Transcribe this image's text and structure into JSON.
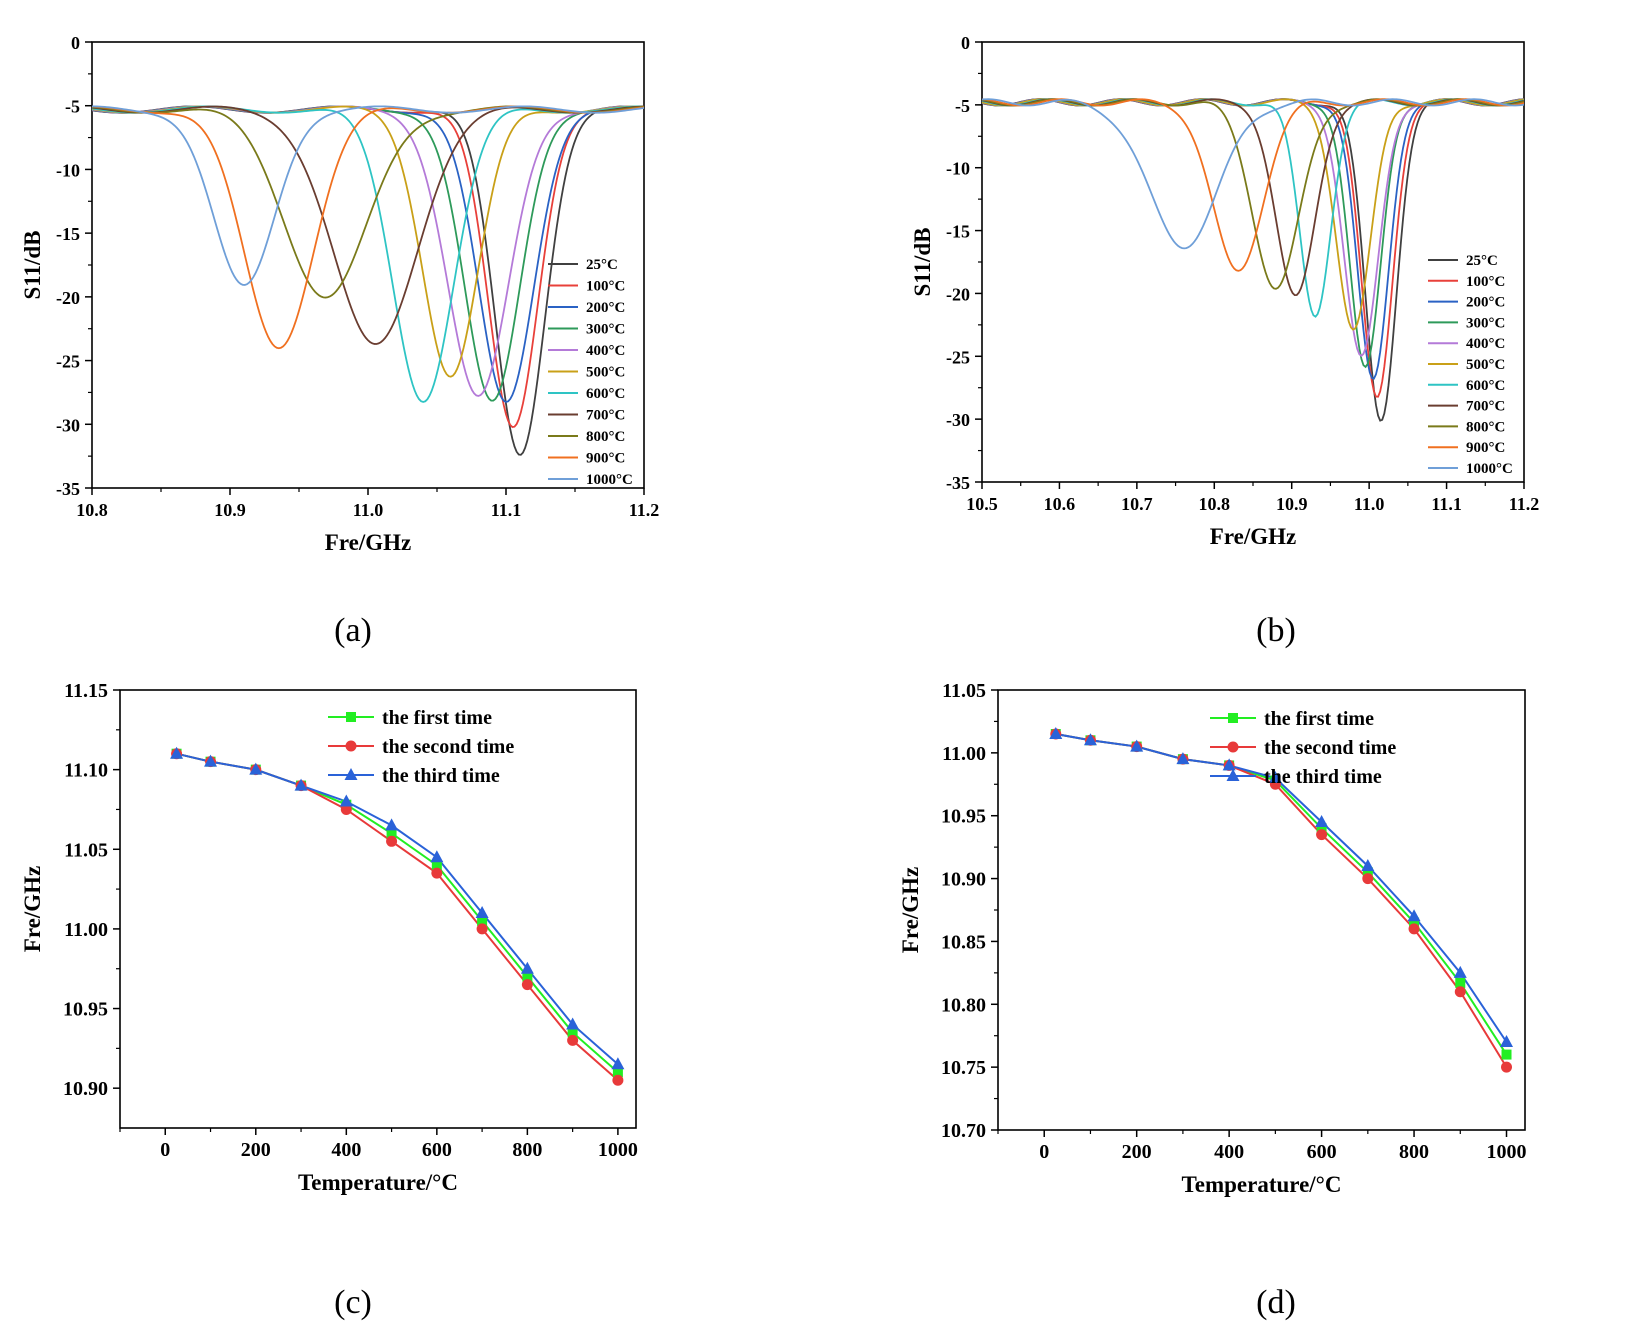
{
  "captions": {
    "a": "(a)",
    "b": "(b)",
    "c": "(c)",
    "d": "(d)"
  },
  "chart_data": [
    {
      "id": "a",
      "type": "line",
      "title": "",
      "xlabel": "Fre/GHz",
      "ylabel": "S11/dB",
      "xlim": [
        10.8,
        11.2
      ],
      "ylim": [
        -35,
        0
      ],
      "xticks": [
        10.8,
        10.9,
        11.0,
        11.1,
        11.2
      ],
      "xtick_labels": [
        "10.8",
        "10.9",
        "11.0",
        "11.1",
        "11.2"
      ],
      "yticks": [
        0,
        -5,
        -10,
        -15,
        -20,
        -25,
        -30,
        -35
      ],
      "ytick_labels": [
        "0",
        "-5",
        "-10",
        "-15",
        "-20",
        "-25",
        "-30",
        "-35"
      ],
      "legend_position": "bottom-right",
      "baseline": -5.3,
      "series": [
        {
          "name": "25°C",
          "color": "#404040",
          "center": 11.11,
          "depth": -32.4,
          "width": 0.018
        },
        {
          "name": "100°C",
          "color": "#e8403a",
          "center": 11.105,
          "depth": -30.3,
          "width": 0.018
        },
        {
          "name": "200°C",
          "color": "#2a62c4",
          "center": 11.1,
          "depth": -28.4,
          "width": 0.02
        },
        {
          "name": "300°C",
          "color": "#2e9a5a",
          "center": 11.09,
          "depth": -28.4,
          "width": 0.02
        },
        {
          "name": "400°C",
          "color": "#b47ad8",
          "center": 11.08,
          "depth": -28.0,
          "width": 0.022
        },
        {
          "name": "500°C",
          "color": "#c9a018",
          "center": 11.06,
          "depth": -26.2,
          "width": 0.02
        },
        {
          "name": "600°C",
          "color": "#2ec4c4",
          "center": 11.04,
          "depth": -28.0,
          "width": 0.022
        },
        {
          "name": "700°C",
          "color": "#6a3d30",
          "center": 11.005,
          "depth": -23.9,
          "width": 0.03
        },
        {
          "name": "800°C",
          "color": "#7a7a1a",
          "center": 10.97,
          "depth": -20.0,
          "width": 0.03
        },
        {
          "name": "900°C",
          "color": "#f07020",
          "center": 10.935,
          "depth": -23.9,
          "width": 0.025
        },
        {
          "name": "1000°C",
          "color": "#6f9fd8",
          "center": 10.91,
          "depth": -19.3,
          "width": 0.022
        }
      ]
    },
    {
      "id": "b",
      "type": "line",
      "title": "",
      "xlabel": "Fre/GHz",
      "ylabel": "S11/dB",
      "xlim": [
        10.5,
        11.2
      ],
      "ylim": [
        -35,
        0
      ],
      "xticks": [
        10.5,
        10.6,
        10.7,
        10.8,
        10.9,
        11.0,
        11.1,
        11.2
      ],
      "xtick_labels": [
        "10.5",
        "10.6",
        "10.7",
        "10.8",
        "10.9",
        "11.0",
        "11.1",
        "11.2"
      ],
      "yticks": [
        0,
        -5,
        -10,
        -15,
        -20,
        -25,
        -30,
        -35
      ],
      "ytick_labels": [
        "0",
        "-5",
        "-10",
        "-15",
        "-20",
        "-25",
        "-30",
        "-35"
      ],
      "legend_position": "bottom-right",
      "baseline": -4.8,
      "series": [
        {
          "name": "25°C",
          "color": "#404040",
          "center": 11.015,
          "depth": -30.2,
          "width": 0.02
        },
        {
          "name": "100°C",
          "color": "#e8403a",
          "center": 11.01,
          "depth": -28.4,
          "width": 0.02
        },
        {
          "name": "200°C",
          "color": "#2a62c4",
          "center": 11.005,
          "depth": -27.0,
          "width": 0.02
        },
        {
          "name": "300°C",
          "color": "#2e9a5a",
          "center": 10.995,
          "depth": -26.1,
          "width": 0.02
        },
        {
          "name": "400°C",
          "color": "#b47ad8",
          "center": 10.99,
          "depth": -25.2,
          "width": 0.022
        },
        {
          "name": "500°C",
          "color": "#c9a018",
          "center": 10.98,
          "depth": -23.0,
          "width": 0.022
        },
        {
          "name": "600°C",
          "color": "#2ec4c4",
          "center": 10.93,
          "depth": -21.8,
          "width": 0.02
        },
        {
          "name": "700°C",
          "color": "#6a3d30",
          "center": 10.905,
          "depth": -20.4,
          "width": 0.025
        },
        {
          "name": "800°C",
          "color": "#7a7a1a",
          "center": 10.88,
          "depth": -19.6,
          "width": 0.03
        },
        {
          "name": "900°C",
          "color": "#f07020",
          "center": 10.83,
          "depth": -18.3,
          "width": 0.032
        },
        {
          "name": "1000°C",
          "color": "#6f9fd8",
          "center": 10.76,
          "depth": -16.2,
          "width": 0.045
        }
      ]
    },
    {
      "id": "c",
      "type": "line",
      "title": "",
      "xlabel": "Temperature/°C",
      "ylabel": "Fre/GHz",
      "xlim": [
        -100,
        1040
      ],
      "ylim": [
        10.875,
        11.15
      ],
      "xticks": [
        0,
        200,
        400,
        600,
        800,
        1000
      ],
      "xtick_labels": [
        "0",
        "200",
        "400",
        "600",
        "800",
        "1000"
      ],
      "yticks": [
        10.9,
        10.95,
        11.0,
        11.05,
        11.1,
        11.15
      ],
      "ytick_labels": [
        "10.90",
        "10.95",
        "11.00",
        "11.05",
        "11.10",
        "11.15"
      ],
      "legend_position": "top-right",
      "x": [
        25,
        100,
        200,
        300,
        400,
        500,
        600,
        700,
        800,
        900,
        1000
      ],
      "series": [
        {
          "name": "the first time",
          "color": "#22ee22",
          "marker": "square",
          "values": [
            11.11,
            11.105,
            11.1,
            11.09,
            11.078,
            11.06,
            11.04,
            11.005,
            10.97,
            10.935,
            10.91
          ]
        },
        {
          "name": "the second time",
          "color": "#e83a3a",
          "marker": "circle",
          "values": [
            11.11,
            11.105,
            11.1,
            11.09,
            11.075,
            11.055,
            11.035,
            11.0,
            10.965,
            10.93,
            10.905
          ]
        },
        {
          "name": "the third time",
          "color": "#2a62d8",
          "marker": "triangle",
          "values": [
            11.11,
            11.105,
            11.1,
            11.09,
            11.08,
            11.065,
            11.045,
            11.01,
            10.975,
            10.94,
            10.915
          ]
        }
      ]
    },
    {
      "id": "d",
      "type": "line",
      "title": "",
      "xlabel": "Temperature/°C",
      "ylabel": "Fre/GHz",
      "xlim": [
        -100,
        1040
      ],
      "ylim": [
        10.7,
        11.05
      ],
      "xticks": [
        0,
        200,
        400,
        600,
        800,
        1000
      ],
      "xtick_labels": [
        "0",
        "200",
        "400",
        "600",
        "800",
        "1000"
      ],
      "yticks": [
        10.7,
        10.75,
        10.8,
        10.85,
        10.9,
        10.95,
        11.0,
        11.05
      ],
      "ytick_labels": [
        "10.70",
        "10.75",
        "10.80",
        "10.85",
        "10.90",
        "10.95",
        "11.00",
        "11.05"
      ],
      "legend_position": "top-right",
      "x": [
        25,
        100,
        200,
        300,
        400,
        500,
        600,
        700,
        800,
        900,
        1000
      ],
      "series": [
        {
          "name": "the first time",
          "color": "#22ee22",
          "marker": "square",
          "values": [
            11.015,
            11.01,
            11.005,
            10.995,
            10.99,
            10.978,
            10.94,
            10.905,
            10.865,
            10.817,
            10.76
          ]
        },
        {
          "name": "the second time",
          "color": "#e83a3a",
          "marker": "circle",
          "values": [
            11.015,
            11.01,
            11.005,
            10.995,
            10.99,
            10.975,
            10.935,
            10.9,
            10.86,
            10.81,
            10.75
          ]
        },
        {
          "name": "the third time",
          "color": "#2a62d8",
          "marker": "triangle",
          "values": [
            11.015,
            11.01,
            11.005,
            10.995,
            10.99,
            10.98,
            10.945,
            10.91,
            10.87,
            10.825,
            10.77
          ]
        }
      ]
    }
  ]
}
